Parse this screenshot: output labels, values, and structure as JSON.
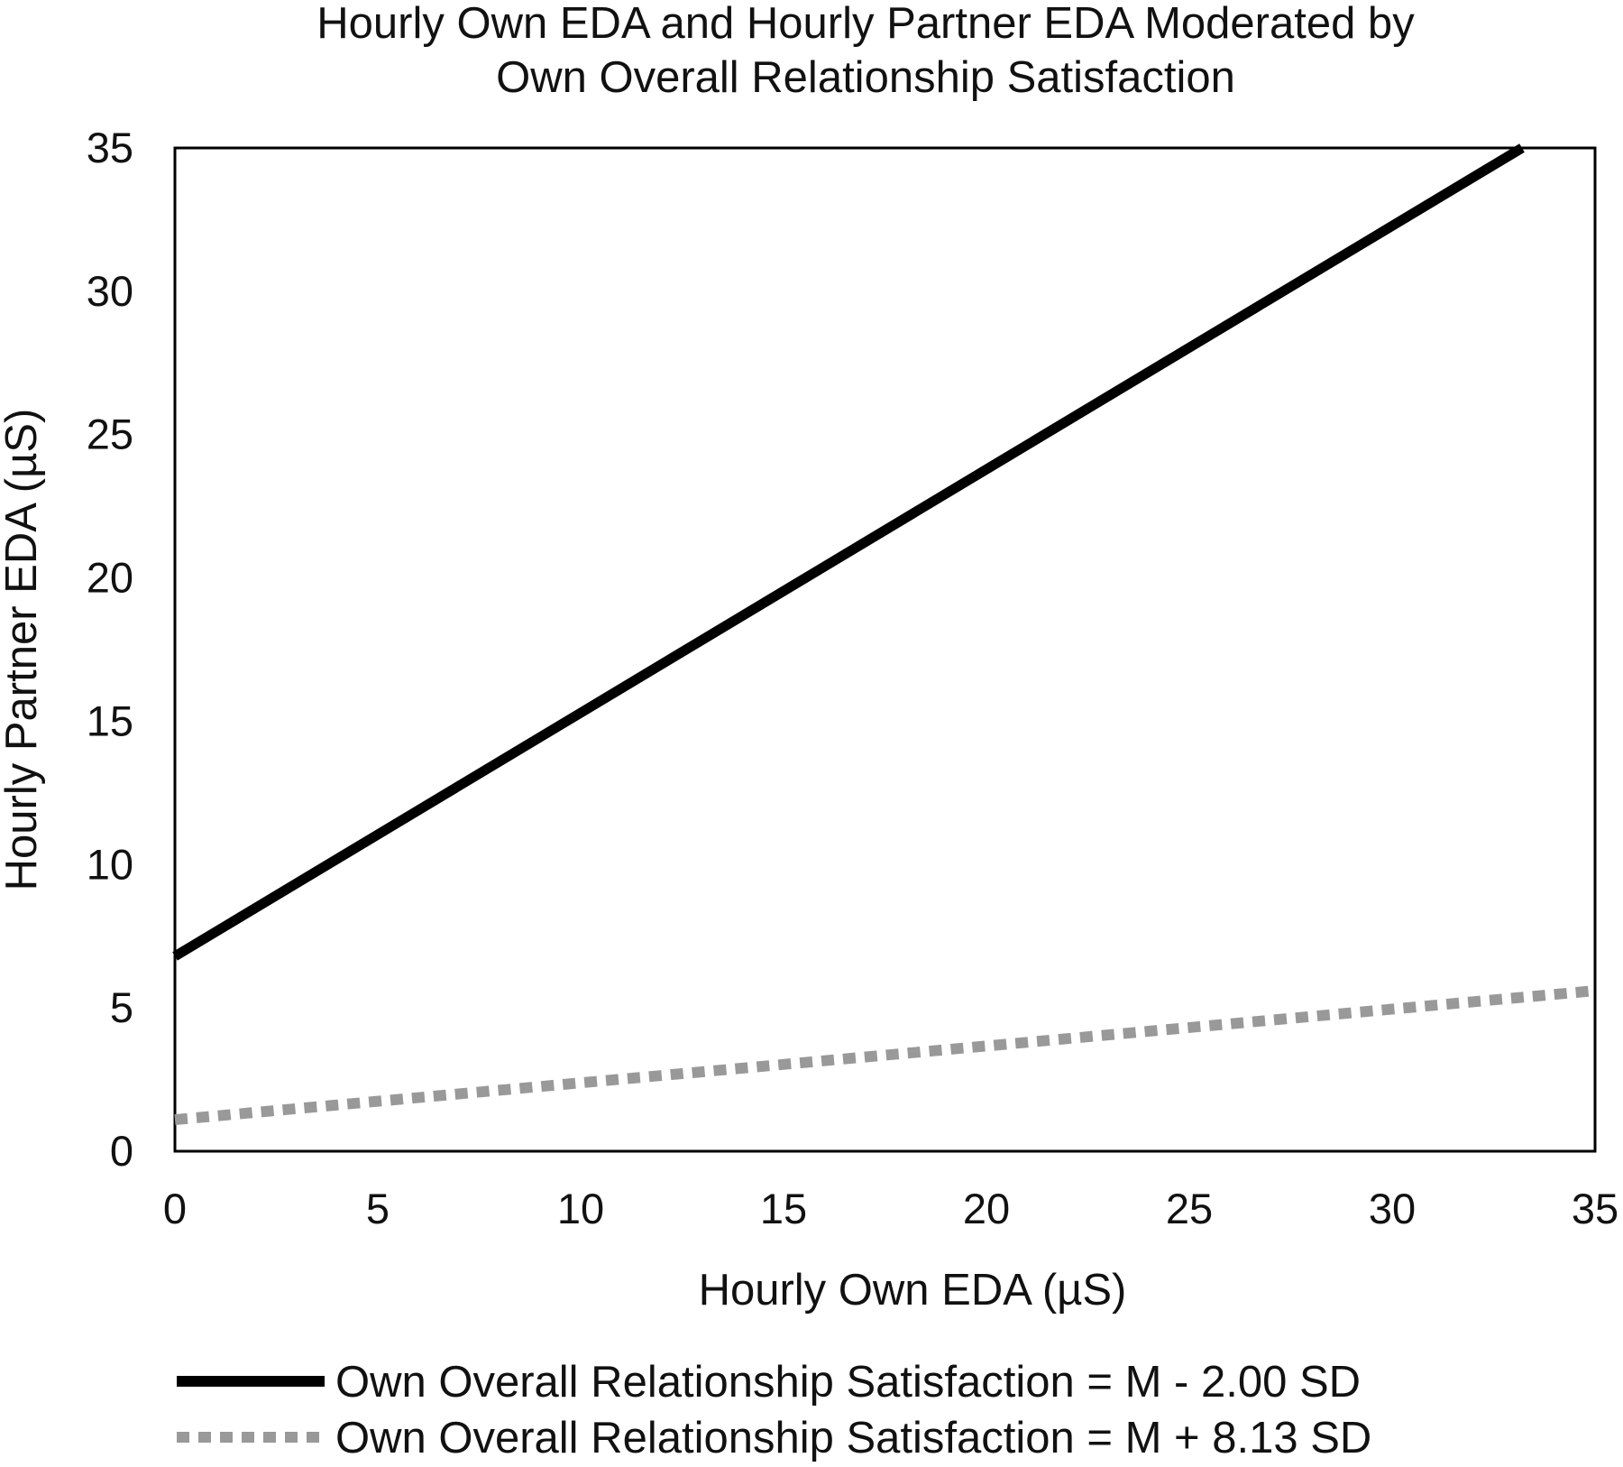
{
  "chart_data": {
    "type": "line",
    "title_lines": [
      "Hourly Own EDA and Hourly Partner EDA Moderated by",
      "Own Overall Relationship Satisfaction"
    ],
    "xlabel": "Hourly Own EDA (µS)",
    "ylabel": "Hourly Partner EDA (µS)",
    "xlim": [
      0,
      35
    ],
    "ylim": [
      0,
      35
    ],
    "x_ticks": [
      "0",
      "5",
      "10",
      "15",
      "20",
      "25",
      "30",
      "35"
    ],
    "y_ticks": [
      "0",
      "5",
      "10",
      "15",
      "20",
      "25",
      "30",
      "35"
    ],
    "grid": false,
    "legend_position": "bottom",
    "series": [
      {
        "name": "Own Overall Relationship Satisfaction = M - 2.00 SD",
        "style": "solid",
        "color": "#000000",
        "x": [
          0,
          33.2
        ],
        "y": [
          6.8,
          35
        ]
      },
      {
        "name": "Own Overall Relationship Satisfaction = M + 8.13 SD",
        "style": "dotted",
        "color": "#999999",
        "x": [
          0,
          35
        ],
        "y": [
          1.1,
          5.6
        ]
      }
    ]
  }
}
